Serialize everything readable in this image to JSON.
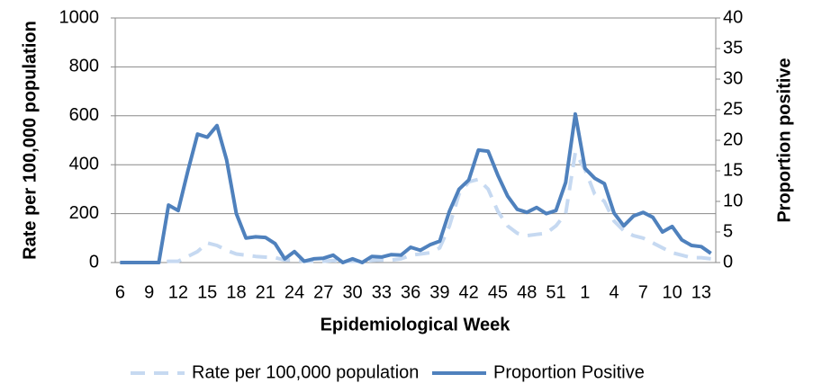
{
  "chart_data": {
    "type": "line",
    "y_label": "Rate per 100,000 population",
    "y2_label": "Proportion positive",
    "x_label": "Epidemiological Week",
    "categories": [
      "6",
      null,
      null,
      "9",
      null,
      null,
      "12",
      null,
      null,
      "15",
      null,
      null,
      "18",
      null,
      null,
      "21",
      null,
      null,
      "24",
      null,
      null,
      "27",
      null,
      null,
      "30",
      null,
      null,
      "33",
      null,
      null,
      "36",
      null,
      null,
      "39",
      null,
      null,
      "42",
      null,
      null,
      "45",
      null,
      null,
      "48",
      null,
      null,
      "51",
      null,
      null,
      "1",
      null,
      null,
      "4",
      null,
      null,
      "7",
      null,
      null,
      "10",
      null,
      null,
      "13",
      null
    ],
    "series": [
      {
        "name": "Rate per 100,000 population",
        "color": "#c6d9f1",
        "dashed": true,
        "axis": "y",
        "values": [
          0,
          0,
          0,
          0,
          0,
          5,
          5,
          25,
          45,
          80,
          70,
          50,
          35,
          30,
          25,
          22,
          20,
          10,
          10,
          5,
          5,
          5,
          8,
          5,
          5,
          5,
          8,
          10,
          10,
          15,
          30,
          35,
          40,
          60,
          150,
          280,
          330,
          340,
          300,
          210,
          150,
          120,
          110,
          115,
          120,
          150,
          200,
          450,
          380,
          280,
          250,
          170,
          130,
          110,
          100,
          80,
          60,
          40,
          30,
          20,
          20,
          15
        ]
      },
      {
        "name": "Proportion Positive",
        "color": "#4f81bd",
        "dashed": false,
        "axis": "y2",
        "values": [
          0,
          0,
          0,
          0,
          0,
          9.4,
          8.5,
          15,
          21,
          20.5,
          22.4,
          16.8,
          8,
          4,
          4.2,
          4.1,
          3.1,
          0.6,
          1.8,
          0.2,
          0.6,
          0.7,
          1.2,
          0,
          0.6,
          0,
          1,
          0.9,
          1.3,
          1.2,
          2.5,
          2,
          2.9,
          3.5,
          8.4,
          12,
          13.5,
          18.4,
          18.2,
          14.3,
          10.9,
          8.7,
          8.2,
          9,
          8,
          8.5,
          13.1,
          24.3,
          15.4,
          13.8,
          12.9,
          8.1,
          6,
          7.6,
          8.2,
          7.4,
          5,
          5.9,
          3.7,
          2.8,
          2.6,
          1.5
        ]
      }
    ],
    "ylim": [
      0,
      1000
    ],
    "yticks": [
      0,
      200,
      400,
      600,
      800,
      1000
    ],
    "y2lim": [
      0,
      40
    ],
    "y2ticks": [
      0,
      5,
      10,
      15,
      20,
      25,
      30,
      35,
      40
    ],
    "grid": true,
    "legend": "bottom"
  }
}
